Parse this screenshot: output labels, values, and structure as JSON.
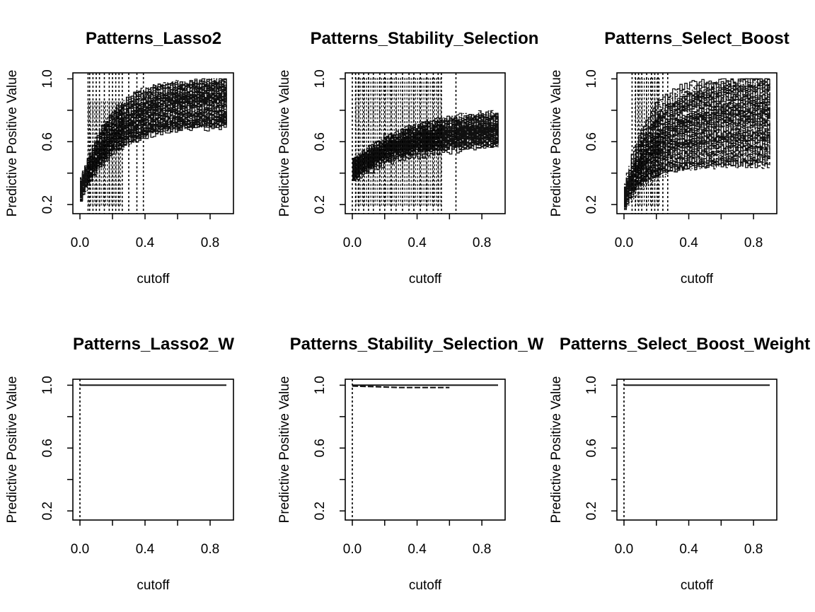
{
  "chart_data": [
    {
      "type": "line",
      "title": "Patterns_Lasso2",
      "xlabel": "cutoff",
      "ylabel": "Predictive Positive Value",
      "xlim": [
        0,
        0.9
      ],
      "ylim": [
        0.16,
        1.02
      ],
      "x_ticks": [
        0.0,
        0.2,
        0.4,
        0.6,
        0.8
      ],
      "x_tick_labels": [
        "0.0",
        "",
        "0.4",
        "",
        "0.8"
      ],
      "y_ticks": [
        0.2,
        0.4,
        0.6,
        0.8,
        1.0
      ],
      "y_tick_labels": [
        "0.2",
        "",
        "0.6",
        "",
        "1.0"
      ],
      "grid": false,
      "series_summary": {
        "n_curves": 100,
        "y_start": 0.3,
        "y_end_low": 0.7,
        "y_end_high": 1.0,
        "rise_rate": 5
      },
      "vlines": [
        0.05,
        0.06,
        0.08,
        0.1,
        0.12,
        0.15,
        0.18,
        0.2,
        0.22,
        0.24,
        0.26,
        0.3,
        0.35,
        0.39
      ],
      "dots": {
        "x_from": 0.05,
        "x_to": 0.26,
        "y_from": 0.2,
        "y_to": 0.85
      }
    },
    {
      "type": "line",
      "title": "Patterns_Stability_Selection",
      "xlabel": "cutoff",
      "ylabel": "Predictive Positive Value",
      "xlim": [
        0,
        0.9
      ],
      "ylim": [
        0.16,
        1.02
      ],
      "x_ticks": [
        0.0,
        0.2,
        0.4,
        0.6,
        0.8
      ],
      "x_tick_labels": [
        "0.0",
        "",
        "0.4",
        "",
        "0.8"
      ],
      "y_ticks": [
        0.2,
        0.4,
        0.6,
        0.8,
        1.0
      ],
      "y_tick_labels": [
        "0.2",
        "",
        "0.6",
        "",
        "1.0"
      ],
      "grid": false,
      "series_summary": {
        "n_curves": 100,
        "y_start": 0.42,
        "y_end_low": 0.6,
        "y_end_high": 0.8,
        "rise_rate": 3
      },
      "vlines": [
        0.0,
        0.02,
        0.04,
        0.07,
        0.1,
        0.13,
        0.17,
        0.2,
        0.24,
        0.27,
        0.31,
        0.35,
        0.38,
        0.42,
        0.46,
        0.5,
        0.53,
        0.55,
        0.64
      ],
      "dots": {
        "x_from": 0.02,
        "x_to": 0.55,
        "y_from": 0.2,
        "y_to": 1.0
      }
    },
    {
      "type": "line",
      "title": "Patterns_Select_Boost",
      "xlabel": "cutoff",
      "ylabel": "Predictive Positive Value",
      "xlim": [
        0,
        0.9
      ],
      "ylim": [
        0.16,
        1.02
      ],
      "x_ticks": [
        0.0,
        0.2,
        0.4,
        0.6,
        0.8
      ],
      "x_tick_labels": [
        "0.0",
        "",
        "0.4",
        "",
        "0.8"
      ],
      "y_ticks": [
        0.2,
        0.4,
        0.6,
        0.8,
        1.0
      ],
      "y_tick_labels": [
        "0.2",
        "",
        "0.6",
        "",
        "1.0"
      ],
      "grid": false,
      "series_summary": {
        "n_curves": 100,
        "y_start": 0.25,
        "y_end_low": 0.45,
        "y_end_high": 1.0,
        "rise_rate": 6
      },
      "vlines": [
        0.05,
        0.07,
        0.09,
        0.11,
        0.14,
        0.17,
        0.19,
        0.21,
        0.24,
        0.27
      ],
      "dots": {
        "x_from": 0.07,
        "x_to": 0.22,
        "y_from": 0.2,
        "y_to": 1.0
      }
    },
    {
      "type": "line",
      "title": "Patterns_Lasso2_W",
      "xlabel": "cutoff",
      "ylabel": "Predictive Positive Value",
      "xlim": [
        0,
        0.9
      ],
      "ylim": [
        0.16,
        1.02
      ],
      "x_ticks": [
        0.0,
        0.2,
        0.4,
        0.6,
        0.8
      ],
      "x_tick_labels": [
        "0.0",
        "",
        "0.4",
        "",
        "0.8"
      ],
      "y_ticks": [
        0.2,
        0.4,
        0.6,
        0.8,
        1.0
      ],
      "y_tick_labels": [
        "0.2",
        "",
        "0.6",
        "",
        "1.0"
      ],
      "grid": false,
      "flat_lines": [
        {
          "x": [
            0.0,
            0.9
          ],
          "y": [
            1.0,
            1.0
          ]
        }
      ],
      "vlines": [
        0.0
      ]
    },
    {
      "type": "line",
      "title": "Patterns_Stability_Selection_W",
      "xlabel": "cutoff",
      "ylabel": "Predictive Positive Value",
      "xlim": [
        0,
        0.9
      ],
      "ylim": [
        0.16,
        1.02
      ],
      "x_ticks": [
        0.0,
        0.2,
        0.4,
        0.6,
        0.8
      ],
      "x_tick_labels": [
        "0.0",
        "",
        "0.4",
        "",
        "0.8"
      ],
      "y_ticks": [
        0.2,
        0.4,
        0.6,
        0.8,
        1.0
      ],
      "y_tick_labels": [
        "0.2",
        "",
        "0.6",
        "",
        "1.0"
      ],
      "grid": false,
      "flat_lines": [
        {
          "x": [
            0.0,
            0.9
          ],
          "y": [
            1.0,
            1.0
          ]
        },
        {
          "x": [
            0.0,
            0.3,
            0.6
          ],
          "y": [
            0.995,
            0.985,
            0.985
          ]
        }
      ],
      "vlines": [
        0.0
      ]
    },
    {
      "type": "line",
      "title": "Patterns_Select_Boost_Weight",
      "xlabel": "cutoff",
      "ylabel": "Predictive Positive Value",
      "xlim": [
        0,
        0.9
      ],
      "ylim": [
        0.16,
        1.02
      ],
      "x_ticks": [
        0.0,
        0.2,
        0.4,
        0.6,
        0.8
      ],
      "x_tick_labels": [
        "0.0",
        "",
        "0.4",
        "",
        "0.8"
      ],
      "y_ticks": [
        0.2,
        0.4,
        0.6,
        0.8,
        1.0
      ],
      "y_tick_labels": [
        "0.2",
        "",
        "0.6",
        "",
        "1.0"
      ],
      "grid": false,
      "flat_lines": [
        {
          "x": [
            0.0,
            0.9
          ],
          "y": [
            1.0,
            1.0
          ]
        }
      ],
      "vlines": [
        0.0
      ]
    }
  ]
}
